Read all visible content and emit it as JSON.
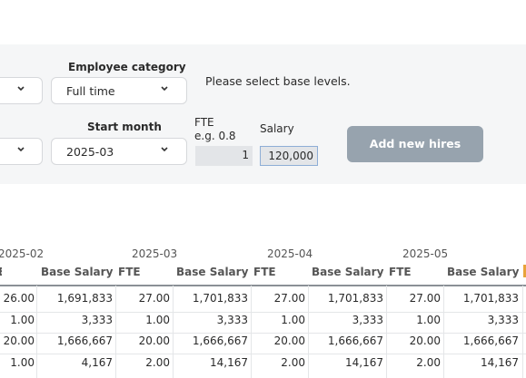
{
  "form": {
    "employee_category_label": "Employee category",
    "employee_category_value": "Full time",
    "start_month_label": "Start month",
    "start_month_value": "2025-03",
    "fte_label_line1": "FTE",
    "fte_label_line2": "e.g. 0.8",
    "fte_value": "1",
    "salary_label": "Salary",
    "salary_value": "120,000",
    "message": "Please select base levels.",
    "add_button": "Add new hires",
    "icons": {
      "chevron": "chevron-down-icon"
    }
  },
  "table": {
    "months": [
      "2025-02",
      "2025-03",
      "2025-04",
      "2025-05"
    ],
    "col_fte": "FTE",
    "col_salary": "Base Salary",
    "rows": [
      {
        "c0": "26.00",
        "c1": "1,691,833",
        "c2": "27.00",
        "c3": "1,701,833",
        "c4": "27.00",
        "c5": "1,701,833",
        "c6": "27.00",
        "c7": "1,701,833"
      },
      {
        "c0": "1.00",
        "c1": "3,333",
        "c2": "1.00",
        "c3": "3,333",
        "c4": "1.00",
        "c5": "3,333",
        "c6": "1.00",
        "c7": "3,333"
      },
      {
        "c0": "20.00",
        "c1": "1,666,667",
        "c2": "20.00",
        "c3": "1,666,667",
        "c4": "20.00",
        "c5": "1,666,667",
        "c6": "20.00",
        "c7": "1,666,667"
      },
      {
        "c0": "1.00",
        "c1": "4,167",
        "c2": "2.00",
        "c3": "14,167",
        "c4": "2.00",
        "c5": "14,167",
        "c6": "2.00",
        "c7": "14,167"
      }
    ]
  },
  "colors": {
    "accent_button": "#97a3ae",
    "panel_bg": "#f5f6f7",
    "table_rule": "#8a9096",
    "marker": "#e8a33a"
  }
}
